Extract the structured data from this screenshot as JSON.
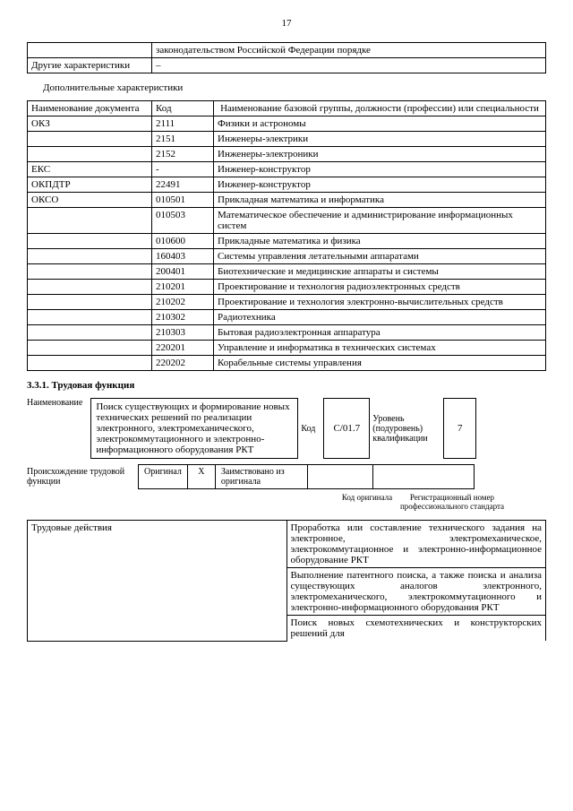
{
  "page_number": "17",
  "table1": {
    "r1c2": "законодательством Российской Федерации порядке",
    "r2c1": "Другие характеристики",
    "r2c2": "–"
  },
  "subtitle1": "Дополнительные характеристики",
  "table2": {
    "h1": "Наименование документа",
    "h2": "Код",
    "h3": "Наименование базовой группы, должности (профессии) или специальности",
    "rows": [
      {
        "c1": "ОКЗ",
        "c2": "2111",
        "c3": "Физики и астрономы"
      },
      {
        "c1": "",
        "c2": "2151",
        "c3": "Инженеры-электрики"
      },
      {
        "c1": "",
        "c2": "2152",
        "c3": "Инженеры-электроники"
      },
      {
        "c1": "ЕКС",
        "c2": "-",
        "c3": "Инженер-конструктор"
      },
      {
        "c1": "ОКПДТР",
        "c2": "22491",
        "c3": "Инженер-конструктор"
      },
      {
        "c1": "ОКСО",
        "c2": "010501",
        "c3": "Прикладная математика и информатика"
      },
      {
        "c1": "",
        "c2": "010503",
        "c3": "Математическое обеспечение и администрирование информационных систем"
      },
      {
        "c1": "",
        "c2": "010600",
        "c3": "Прикладные математика и физика"
      },
      {
        "c1": "",
        "c2": "160403",
        "c3": "Системы управления летательными аппаратами"
      },
      {
        "c1": "",
        "c2": "200401",
        "c3": "Биотехнические и медицинские аппараты и системы"
      },
      {
        "c1": "",
        "c2": "210201",
        "c3": "Проектирование и технология радиоэлектронных средств"
      },
      {
        "c1": "",
        "c2": "210202",
        "c3": "Проектирование и технология электронно-вычислительных средств"
      },
      {
        "c1": "",
        "c2": "210302",
        "c3": "Радиотехника"
      },
      {
        "c1": "",
        "c2": "210303",
        "c3": "Бытовая радиоэлектронная аппаратура"
      },
      {
        "c1": "",
        "c2": "220201",
        "c3": "Управление и информатика в технических системах"
      },
      {
        "c1": "",
        "c2": "220202",
        "c3": "Корабельные системы управления"
      }
    ]
  },
  "section_331": "3.3.1. Трудовая функция",
  "func": {
    "name_label": "Наименование",
    "name_text": "Поиск существующих и формирование новых технических решений по реализации электронного, электромеханического, электрокоммутационного и электронно-информационного оборудования РКТ",
    "code_label": "Код",
    "code_value": "C/01.7",
    "level_label": "Уровень (подуровень) квалификации",
    "level_value": "7"
  },
  "origin": {
    "label": "Происхождение трудовой функции",
    "orig": "Оригинал",
    "x": "X",
    "borrowed": "Заимствовано из оригинала",
    "cap_code": "Код оригинала",
    "cap_reg": "Регистрационный номер профессионального стандарта"
  },
  "table3": {
    "r1c1": "Трудовые действия",
    "a1": "Проработка или составление технического задания на электронное, электромеханическое, электрокоммутационное и электронно-информационное оборудование РКТ",
    "a2": "Выполнение патентного поиска, а также поиска и анализа существующих аналогов электронного, электромеханического, электрокоммутационного и электронно-информационного оборудования РКТ",
    "a3": "Поиск новых схемотехнических и конструкторских решений для"
  }
}
